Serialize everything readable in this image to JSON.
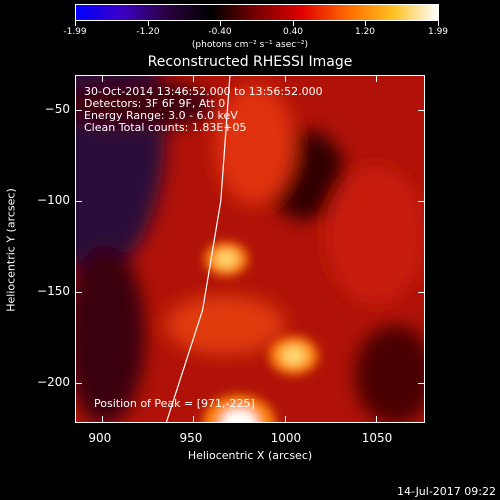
{
  "colorbar": {
    "tick_labels": [
      "-1.99",
      "-1.20",
      "-0.40",
      "0.40",
      "1.20",
      "1.99"
    ],
    "units": "(photons cm⁻² s⁻¹ asec⁻²)",
    "stops": [
      "#0000ff",
      "#3b00c8",
      "#2a0040",
      "#000000",
      "#7a0000",
      "#e00000",
      "#ff6a00",
      "#ffc020",
      "#ffffff"
    ]
  },
  "chart_data": {
    "type": "heatmap",
    "title": "Reconstructed RHESSI Image",
    "xlabel": "Heliocentric X (arcsec)",
    "ylabel": "Heliocentric Y (arcsec)",
    "xlim": [
      885,
      1077
    ],
    "ylim": [
      -222,
      -31
    ],
    "x_ticks": [
      900,
      950,
      1000,
      1050
    ],
    "y_ticks": [
      -50,
      -100,
      -150,
      -200
    ],
    "info_lines": [
      "30-Oct-2014 13:46:52.000 to 13:56:52.000",
      "Detectors: 3F 6F 9F, Att 0",
      "Energy Range: 3.0 - 6.0 keV",
      "Clean    Total counts: 1.83E+05"
    ],
    "peak_text": "Position of Peak = [971,-225]",
    "sources": [
      {
        "x": 968,
        "y": -132,
        "value": 1.2
      },
      {
        "x": 1005,
        "y": -185,
        "value": 1.35
      },
      {
        "x": 975,
        "y": -222,
        "value": 1.99
      }
    ],
    "limb": [
      [
        970,
        -31
      ],
      [
        965,
        -100
      ],
      [
        955,
        -160
      ],
      [
        935,
        -222
      ]
    ]
  },
  "footer": {
    "date": "14-Jul-2017 09:22"
  }
}
